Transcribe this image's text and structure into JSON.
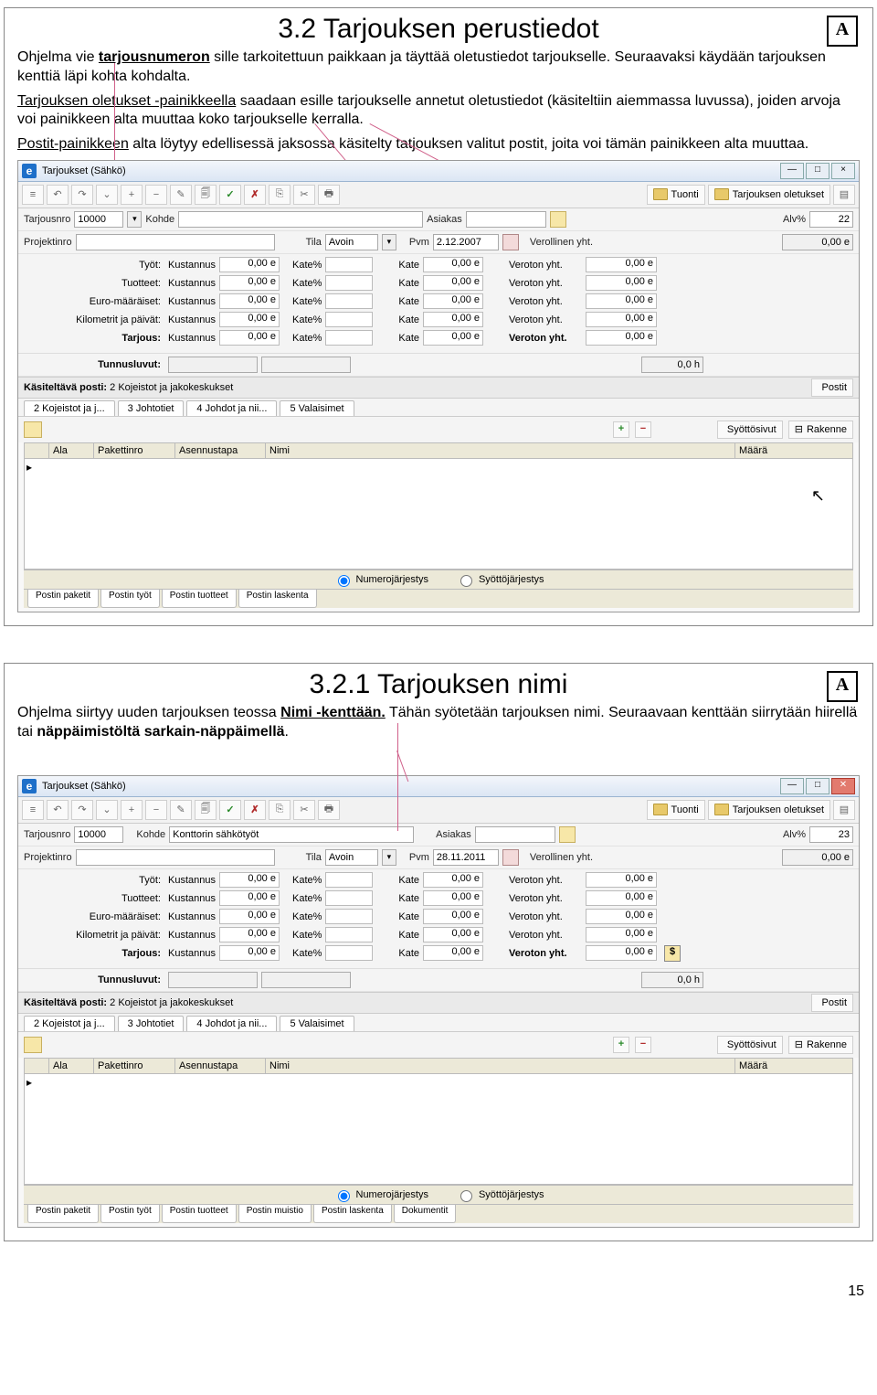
{
  "slide1": {
    "title": "3.2 Tarjouksen perustiedot",
    "para1a": "Ohjelma vie ",
    "para1b": "tarjousnumeron",
    "para1c": " sille tarkoitettuun paikkaan ja täyttää oletustiedot tarjoukselle. Seuraavaksi käydään tarjouksen kenttiä läpi kohta kohdalta.",
    "para2a": "Tarjouksen oletukset -painikkeella",
    "para2b": " saadaan esille tarjoukselle annetut oletustiedot (käsiteltiin aiemmassa luvussa), joiden arvoja voi painikkeen alta muuttaa koko tarjoukselle kerralla.",
    "para3a": "Postit-painikkeen",
    "para3b": " alta löytyy edellisessä jaksossa käsitelty tatjouksen valitut postit, joita voi tämän painikkeen alta muuttaa.",
    "win": {
      "title": "Tarjoukset (Sähkö)",
      "tuonti": "Tuonti",
      "tarj_olet": "Tarjouksen oletukset",
      "tarjousnro_label": "Tarjousnro",
      "tarjousnro_val": "10000",
      "kohde_label": "Kohde",
      "asiakas_label": "Asiakas",
      "alv_label": "Alv%",
      "alv_val": "22",
      "projektinro_label": "Projektinro",
      "tila_label": "Tila",
      "tila_val": "Avoin",
      "pvm_label": "Pvm",
      "pvm_val": "2.12.2007",
      "verollinen_label": "Verollinen yht.",
      "verollinen_val": "0,00 e",
      "rows": [
        {
          "label": "Työt:",
          "k": "Kustannus",
          "kv": "0,00 e",
          "kp": "Kate%",
          "kate": "Kate",
          "katev": "0,00 e",
          "v": "Veroton yht.",
          "vv": "0,00 e"
        },
        {
          "label": "Tuotteet:",
          "k": "Kustannus",
          "kv": "0,00 e",
          "kp": "Kate%",
          "kate": "Kate",
          "katev": "0,00 e",
          "v": "Veroton yht.",
          "vv": "0,00 e"
        },
        {
          "label": "Euro-määräiset:",
          "k": "Kustannus",
          "kv": "0,00 e",
          "kp": "Kate%",
          "kate": "Kate",
          "katev": "0,00 e",
          "v": "Veroton yht.",
          "vv": "0,00 e"
        },
        {
          "label": "Kilometrit ja päivät:",
          "k": "Kustannus",
          "kv": "0,00 e",
          "kp": "Kate%",
          "kate": "Kate",
          "katev": "0,00 e",
          "v": "Veroton yht.",
          "vv": "0,00 e"
        },
        {
          "label": "Tarjous:",
          "k": "Kustannus",
          "kv": "0,00 e",
          "kp": "Kate%",
          "kate": "Kate",
          "katev": "0,00 e",
          "v": "Veroton yht.",
          "vv": "0,00 e",
          "bold": true
        }
      ],
      "tunnusluvut": "Tunnusluvut:",
      "tunnus_h": "0,0 h",
      "kasit_label": "Käsiteltävä posti:",
      "kasit_val": "2 Kojeistot ja jakokeskukset",
      "postit": "Postit",
      "tabs": [
        "2 Kojeistot ja j...",
        "3 Johtotiet",
        "4 Johdot ja nii...",
        "5 Valaisimet"
      ],
      "syottosivut": "Syöttösivut",
      "rakenne": "Rakenne",
      "cols": {
        "ala": "Ala",
        "pak": "Pakettinro",
        "as": "Asennustapa",
        "nimi": "Nimi",
        "maara": "Määrä"
      },
      "numero": "Numerojärjestys",
      "syotto": "Syöttöjärjestys",
      "btabs": [
        "Postin paketit",
        "Postin työt",
        "Postin tuotteet",
        "Postin laskenta"
      ]
    }
  },
  "slide2": {
    "title": "3.2.1 Tarjouksen nimi",
    "para1a": "Ohjelma siirtyy uuden tarjouksen teossa ",
    "para1b": "Nimi -kenttään.",
    "para1c": " Tähän syötetään tarjouksen nimi. Seuraavaan kenttään siirrytään hiirellä tai ",
    "para1d": "näppäimistöltä sarkain-näppäimellä",
    "para1e": ".",
    "win": {
      "title": "Tarjoukset (Sähkö)",
      "tuonti": "Tuonti",
      "tarj_olet": "Tarjouksen oletukset",
      "tarjousnro_val": "10000",
      "kohde_val": "Konttorin sähkötyöt",
      "alv_val": "23",
      "pvm_val": "28.11.2011",
      "verollinen_val": "0,00 e",
      "rows": [
        {
          "label": "Työt:",
          "kv": "0,00 e",
          "katev": "0,00 e",
          "vv": "0,00 e"
        },
        {
          "label": "Tuotteet:",
          "kv": "0,00 e",
          "katev": "0,00 e",
          "vv": "0,00 e"
        },
        {
          "label": "Euro-määräiset:",
          "kv": "0,00 e",
          "katev": "0,00 e",
          "vv": "0,00 e"
        },
        {
          "label": "Kilometrit ja päivät:",
          "kv": "0,00 e",
          "katev": "0,00 e",
          "vv": "0,00 e"
        },
        {
          "label": "Tarjous:",
          "kv": "0,00 e",
          "katev": "0,00 e",
          "vv": "0,00 e",
          "bold": true
        }
      ],
      "btabs": [
        "Postin paketit",
        "Postin työt",
        "Postin tuotteet",
        "Postin muistio",
        "Postin laskenta",
        "Dokumentit"
      ]
    }
  },
  "common": {
    "tarjousnro_label": "Tarjousnro",
    "kohde_label": "Kohde",
    "asiakas_label": "Asiakas",
    "alv_label": "Alv%",
    "projektinro_label": "Projektinro",
    "tila_label": "Tila",
    "tila_val": "Avoin",
    "pvm_label": "Pvm",
    "verollinen_label": "Verollinen yht.",
    "kustannus": "Kustannus",
    "katep": "Kate%",
    "kate": "Kate",
    "veroton": "Veroton yht.",
    "tunnusluvut": "Tunnusluvut:",
    "tunnus_h": "0,0 h",
    "kasit_label": "Käsiteltävä posti:",
    "kasit_val": "2 Kojeistot ja jakokeskukset",
    "postit": "Postit",
    "tabs": [
      "2 Kojeistot ja j...",
      "3 Johtotiet",
      "4 Johdot ja nii...",
      "5 Valaisimet"
    ],
    "syottosivut": "Syöttösivut",
    "rakenne": "Rakenne",
    "cols": {
      "ala": "Ala",
      "pak": "Pakettinro",
      "as": "Asennustapa",
      "nimi": "Nimi",
      "maara": "Määrä"
    },
    "numero": "Numerojärjestys",
    "syotto": "Syöttöjärjestys"
  },
  "page_number": "15"
}
